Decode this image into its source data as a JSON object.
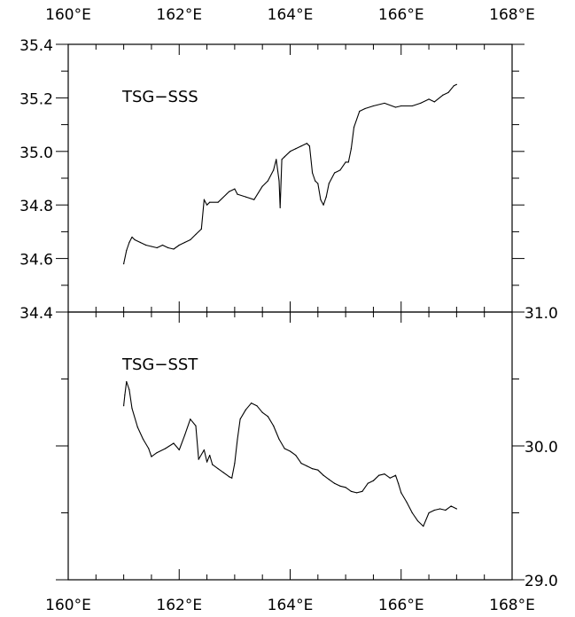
{
  "chart_data": [
    {
      "type": "line",
      "title": "",
      "xlabel": "",
      "ylabel": "",
      "panel_label": "TSG−SSS",
      "xlim": [
        160,
        168
      ],
      "ylim": [
        34.4,
        35.4
      ],
      "x_ticks": [
        160,
        162,
        164,
        166,
        168
      ],
      "x_tick_labels": [
        "160°E",
        "162°E",
        "164°E",
        "166°E",
        "168°E"
      ],
      "y_ticks": [
        34.4,
        34.6,
        34.8,
        35.0,
        35.2,
        35.4
      ],
      "y_tick_labels": [
        "34.4",
        "34.6",
        "34.8",
        "35.0",
        "35.2",
        "35.4"
      ],
      "y_axis_side": "left",
      "grid": false,
      "series": [
        {
          "x": [
            161.0,
            161.05,
            161.1,
            161.15,
            161.2,
            161.3,
            161.4,
            161.5,
            161.6,
            161.7,
            161.8,
            161.9,
            162.0,
            162.1,
            162.2,
            162.3,
            162.4,
            162.45,
            162.5,
            162.55,
            162.7,
            162.9,
            163.0,
            163.05,
            163.2,
            163.35,
            163.5,
            163.6,
            163.7,
            163.75,
            163.8,
            163.82,
            163.85,
            163.9,
            164.0,
            164.1,
            164.2,
            164.3,
            164.35,
            164.4,
            164.45,
            164.5,
            164.55,
            164.6,
            164.65,
            164.7,
            164.8,
            164.9,
            165.0,
            165.05,
            165.1,
            165.15,
            165.25,
            165.35,
            165.5,
            165.7,
            165.9,
            166.0,
            166.2,
            166.35,
            166.5,
            166.6,
            166.75,
            166.85,
            166.95,
            167.0
          ],
          "y": [
            34.58,
            34.63,
            34.66,
            34.68,
            34.67,
            34.66,
            34.65,
            34.645,
            34.64,
            34.65,
            34.64,
            34.635,
            34.65,
            34.66,
            34.67,
            34.69,
            34.71,
            34.82,
            34.8,
            34.81,
            34.81,
            34.85,
            34.86,
            34.84,
            34.83,
            34.82,
            34.87,
            34.89,
            34.93,
            34.97,
            34.89,
            34.79,
            34.97,
            34.98,
            35.0,
            35.01,
            35.02,
            35.03,
            35.02,
            34.92,
            34.89,
            34.88,
            34.82,
            34.8,
            34.83,
            34.88,
            34.92,
            34.93,
            34.96,
            34.96,
            35.01,
            35.09,
            35.15,
            35.16,
            35.17,
            35.18,
            35.165,
            35.17,
            35.17,
            35.18,
            35.195,
            35.185,
            35.21,
            35.22,
            35.245,
            35.25
          ]
        }
      ]
    },
    {
      "type": "line",
      "title": "",
      "xlabel": "",
      "ylabel": "",
      "panel_label": "TSG−SST",
      "xlim": [
        160,
        168
      ],
      "ylim": [
        29.0,
        31.0
      ],
      "x_ticks": [
        160,
        162,
        164,
        166,
        168
      ],
      "x_tick_labels": [
        "160°E",
        "162°E",
        "164°E",
        "166°E",
        "168°E"
      ],
      "y_ticks": [
        29.0,
        30.0,
        31.0
      ],
      "y_tick_labels": [
        "29.0",
        "30.0",
        "31.0"
      ],
      "y_axis_side": "right",
      "grid": false,
      "series": [
        {
          "x": [
            161.0,
            161.02,
            161.05,
            161.1,
            161.15,
            161.25,
            161.35,
            161.45,
            161.5,
            161.6,
            161.75,
            161.9,
            162.0,
            162.1,
            162.2,
            162.3,
            162.35,
            162.45,
            162.5,
            162.55,
            162.6,
            162.7,
            162.8,
            162.9,
            162.95,
            163.0,
            163.05,
            163.1,
            163.2,
            163.3,
            163.4,
            163.5,
            163.6,
            163.7,
            163.8,
            163.9,
            164.0,
            164.1,
            164.2,
            164.3,
            164.4,
            164.5,
            164.6,
            164.7,
            164.8,
            164.9,
            165.0,
            165.1,
            165.2,
            165.3,
            165.4,
            165.5,
            165.6,
            165.7,
            165.8,
            165.9,
            165.95,
            166.0,
            166.1,
            166.2,
            166.3,
            166.4,
            166.5,
            166.6,
            166.7,
            166.8,
            166.9,
            167.0
          ],
          "y": [
            30.3,
            30.38,
            30.48,
            30.42,
            30.28,
            30.14,
            30.05,
            29.98,
            29.92,
            29.95,
            29.98,
            30.02,
            29.97,
            30.08,
            30.2,
            30.15,
            29.9,
            29.97,
            29.88,
            29.93,
            29.86,
            29.83,
            29.8,
            29.77,
            29.76,
            29.87,
            30.05,
            30.2,
            30.27,
            30.32,
            30.3,
            30.25,
            30.22,
            30.15,
            30.05,
            29.98,
            29.96,
            29.93,
            29.87,
            29.85,
            29.83,
            29.82,
            29.78,
            29.75,
            29.72,
            29.7,
            29.69,
            29.66,
            29.65,
            29.66,
            29.72,
            29.74,
            29.78,
            29.79,
            29.76,
            29.78,
            29.72,
            29.65,
            29.58,
            29.5,
            29.44,
            29.4,
            29.5,
            29.52,
            29.53,
            29.52,
            29.55,
            29.53
          ]
        }
      ]
    }
  ]
}
